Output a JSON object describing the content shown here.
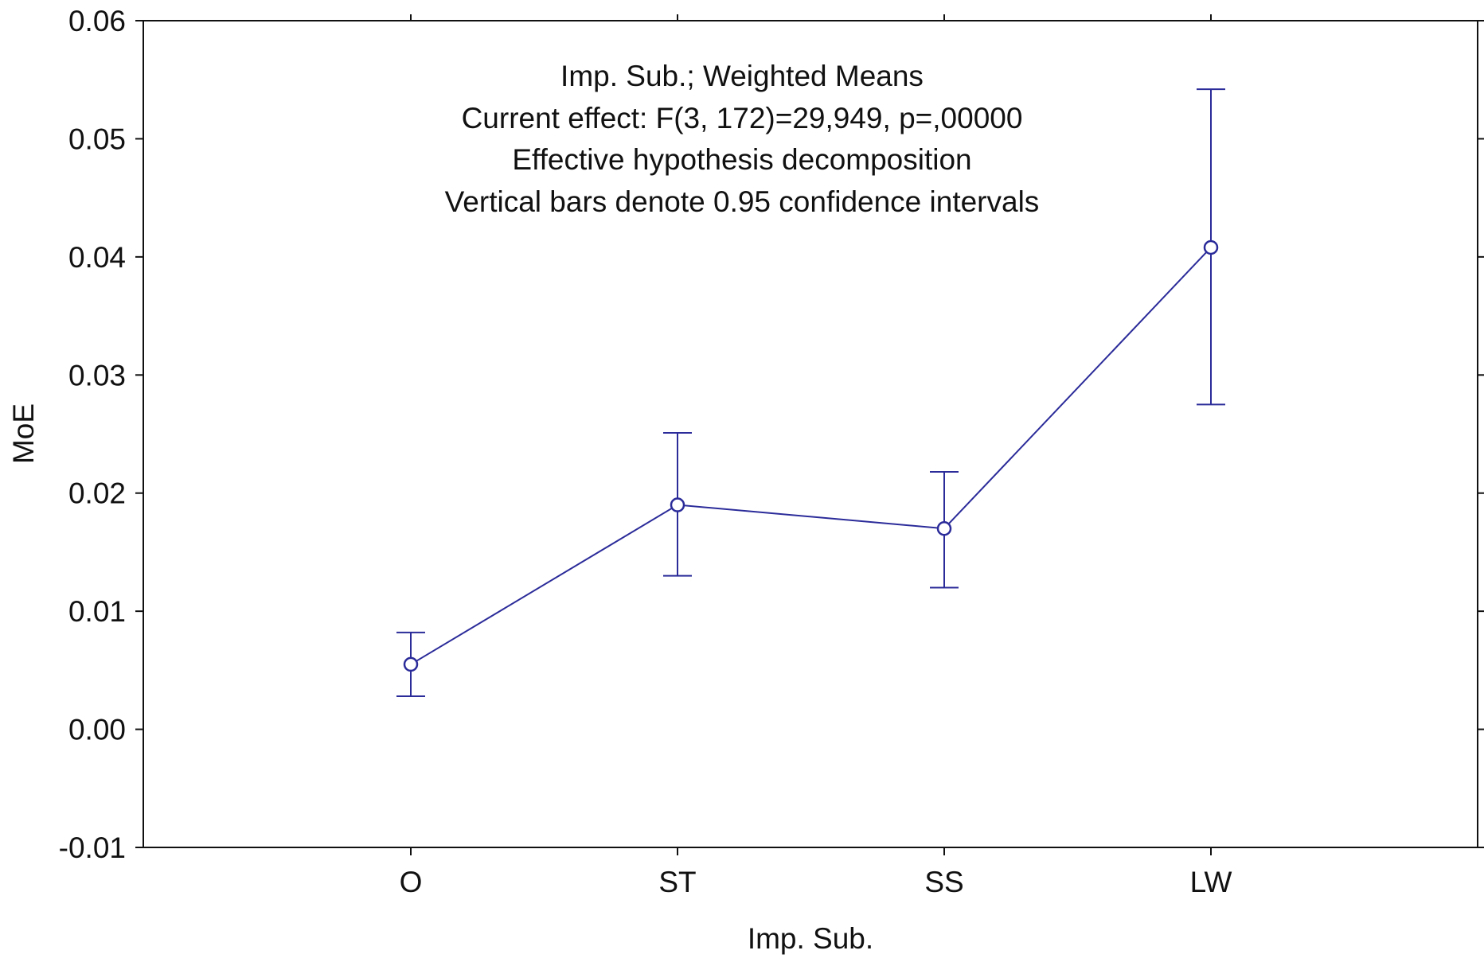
{
  "colors": {
    "series": "#2b2b9a",
    "axis": "#111111",
    "background": "#ffffff"
  },
  "chart_data": {
    "type": "line",
    "title": "",
    "xlabel": "Imp. Sub.",
    "ylabel": "MoE",
    "categories": [
      "O",
      "ST",
      "SS",
      "LW"
    ],
    "ylim": [
      -0.01,
      0.06
    ],
    "y_ticks": [
      -0.01,
      0.0,
      0.01,
      0.02,
      0.03,
      0.04,
      0.05,
      0.06
    ],
    "y_tick_labels": [
      "-0.01",
      "0.00",
      "0.01",
      "0.02",
      "0.03",
      "0.04",
      "0.05",
      "0.06"
    ],
    "grid": false,
    "series": [
      {
        "name": "Weighted Means",
        "values": [
          0.0055,
          0.019,
          0.017,
          0.0408
        ],
        "ci_lower": [
          0.0028,
          0.013,
          0.012,
          0.0275
        ],
        "ci_upper": [
          0.0082,
          0.0251,
          0.0218,
          0.0542
        ]
      }
    ],
    "annotation": [
      "Imp. Sub.; Weighted Means",
      "Current effect: F(3, 172)=29,949, p=,00000",
      "Effective hypothesis decomposition",
      "Vertical bars denote 0.95 confidence intervals"
    ]
  }
}
